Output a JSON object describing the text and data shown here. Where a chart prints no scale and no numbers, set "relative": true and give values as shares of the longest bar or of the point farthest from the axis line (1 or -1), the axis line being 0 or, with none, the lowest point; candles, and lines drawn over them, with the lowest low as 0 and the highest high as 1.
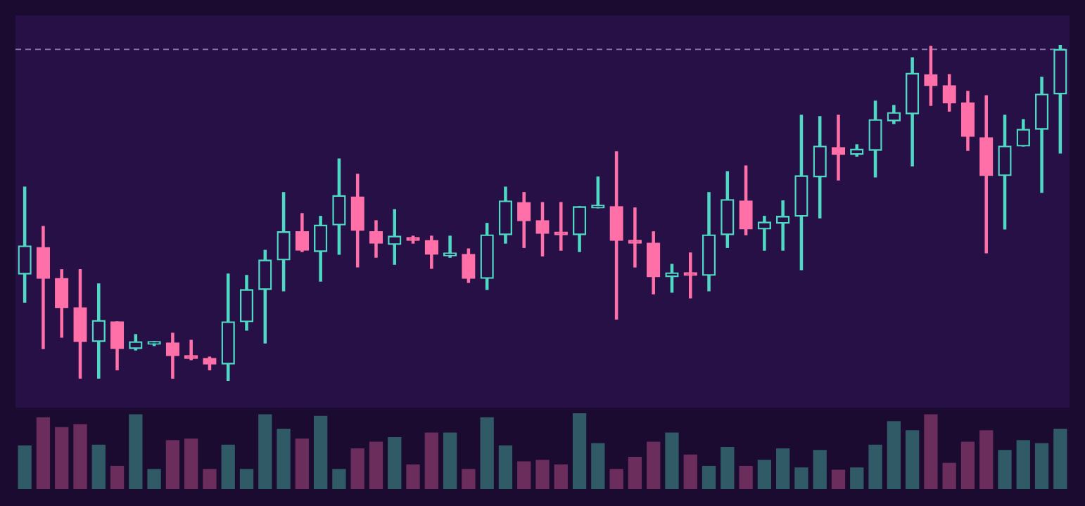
{
  "chart_data": [
    {
      "type": "candlestick",
      "relative": true,
      "tick_labels": false,
      "categories": [
        null,
        null,
        null,
        null,
        null,
        null,
        null,
        null,
        null,
        null,
        null,
        null,
        null,
        null,
        null,
        null,
        null,
        null,
        null,
        null,
        null,
        null,
        null,
        null,
        null,
        null,
        null,
        null,
        null,
        null,
        null,
        null,
        null,
        null,
        null,
        null,
        null,
        null,
        null,
        null,
        null,
        null,
        null,
        null,
        null,
        null,
        null,
        null,
        null,
        null,
        null,
        null,
        null,
        null,
        null,
        null,
        null
      ],
      "ohlc": [
        [
          0.318,
          0.577,
          0.234,
          0.402
        ],
        [
          0.397,
          0.46,
          0.096,
          0.305
        ],
        [
          0.305,
          0.331,
          0.13,
          0.218
        ],
        [
          0.218,
          0.331,
          0.008,
          0.117
        ],
        [
          0.117,
          0.289,
          0.008,
          0.18
        ],
        [
          0.176,
          0.176,
          0.033,
          0.096
        ],
        [
          0.096,
          0.138,
          0.092,
          0.117
        ],
        [
          0.109,
          0.117,
          0.105,
          0.117
        ],
        [
          0.113,
          0.142,
          0.008,
          0.075
        ],
        [
          0.071,
          0.121,
          0.063,
          0.067
        ],
        [
          0.067,
          0.071,
          0.033,
          0.05
        ],
        [
          0.05,
          0.318,
          0,
          0.176
        ],
        [
          0.176,
          0.314,
          0.151,
          0.272
        ],
        [
          0.272,
          0.389,
          0.113,
          0.36
        ],
        [
          0.36,
          0.561,
          0.268,
          0.444
        ],
        [
          0.444,
          0.498,
          0.385,
          0.389
        ],
        [
          0.385,
          0.49,
          0.297,
          0.464
        ],
        [
          0.464,
          0.661,
          0.377,
          0.552
        ],
        [
          0.548,
          0.615,
          0.339,
          0.448
        ],
        [
          0.444,
          0.477,
          0.368,
          0.41
        ],
        [
          0.406,
          0.51,
          0.347,
          0.431
        ],
        [
          0.427,
          0.431,
          0.41,
          0.418
        ],
        [
          0.418,
          0.431,
          0.335,
          0.377
        ],
        [
          0.372,
          0.431,
          0.368,
          0.381
        ],
        [
          0.377,
          0.393,
          0.293,
          0.305
        ],
        [
          0.305,
          0.469,
          0.272,
          0.435
        ],
        [
          0.435,
          0.577,
          0.41,
          0.536
        ],
        [
          0.531,
          0.561,
          0.397,
          0.477
        ],
        [
          0.477,
          0.531,
          0.372,
          0.439
        ],
        [
          0.439,
          0.531,
          0.389,
          0.435
        ],
        [
          0.435,
          0.519,
          0.385,
          0.519
        ],
        [
          0.515,
          0.607,
          0.515,
          0.519
        ],
        [
          0.519,
          0.682,
          0.184,
          0.418
        ],
        [
          0.414,
          0.515,
          0.339,
          0.41
        ],
        [
          0.41,
          0.444,
          0.259,
          0.31
        ],
        [
          0.31,
          0.347,
          0.264,
          0.322
        ],
        [
          0.322,
          0.381,
          0.247,
          0.314
        ],
        [
          0.314,
          0.561,
          0.268,
          0.435
        ],
        [
          0.435,
          0.623,
          0.397,
          0.54
        ],
        [
          0.536,
          0.64,
          0.435,
          0.452
        ],
        [
          0.452,
          0.49,
          0.389,
          0.473
        ],
        [
          0.469,
          0.536,
          0.389,
          0.49
        ],
        [
          0.49,
          0.791,
          0.331,
          0.611
        ],
        [
          0.607,
          0.787,
          0.485,
          0.699
        ],
        [
          0.695,
          0.791,
          0.598,
          0.674
        ],
        [
          0.674,
          0.703,
          0.669,
          0.69
        ],
        [
          0.686,
          0.833,
          0.607,
          0.778
        ],
        [
          0.774,
          0.82,
          0.766,
          0.799
        ],
        [
          0.795,
          0.962,
          0.64,
          0.916
        ],
        [
          0.912,
          0.996,
          0.82,
          0.879
        ],
        [
          0.879,
          0.912,
          0.803,
          0.828
        ],
        [
          0.828,
          0.862,
          0.686,
          0.728
        ],
        [
          0.724,
          0.849,
          0.381,
          0.611
        ],
        [
          0.611,
          0.791,
          0.452,
          0.699
        ],
        [
          0.699,
          0.778,
          0.699,
          0.749
        ],
        [
          0.749,
          0.904,
          0.561,
          0.854
        ],
        [
          0.854,
          1,
          0.678,
          0.987
        ]
      ],
      "ref_lines": [
        {
          "axis": "y",
          "value": 0.987,
          "color": "#7f74a8",
          "line_style": "dashed"
        }
      ]
    },
    {
      "type": "bar",
      "relative": true,
      "tick_labels": false,
      "categories": [
        null,
        null,
        null,
        null,
        null,
        null,
        null,
        null,
        null,
        null,
        null,
        null,
        null,
        null,
        null,
        null,
        null,
        null,
        null,
        null,
        null,
        null,
        null,
        null,
        null,
        null,
        null,
        null,
        null,
        null,
        null,
        null,
        null,
        null,
        null,
        null,
        null,
        null,
        null,
        null,
        null,
        null,
        null,
        null,
        null,
        null,
        null,
        null,
        null,
        null,
        null,
        null,
        null,
        null,
        null,
        null,
        null
      ],
      "values": [
        0.57,
        0.94,
        0.81,
        0.85,
        0.58,
        0.3,
        0.98,
        0.26,
        0.64,
        0.66,
        0.26,
        0.58,
        0.26,
        0.98,
        0.79,
        0.66,
        0.96,
        0.26,
        0.53,
        0.62,
        0.68,
        0.32,
        0.74,
        0.74,
        0.26,
        0.94,
        0.57,
        0.36,
        0.38,
        0.32,
        1,
        0.6,
        0.26,
        0.42,
        0.62,
        0.74,
        0.45,
        0.3,
        0.55,
        0.3,
        0.38,
        0.53,
        0.28,
        0.51,
        0.25,
        0.28,
        0.58,
        0.89,
        0.77,
        0.98,
        0.34,
        0.62,
        0.77,
        0.51,
        0.64,
        0.6,
        0.79
      ],
      "colors": [
        "#2f5a66",
        "#6a2d5c",
        "#6a2d5c",
        "#6a2d5c",
        "#2f5a66",
        "#6a2d5c",
        "#2f5a66",
        "#2f5a66",
        "#6a2d5c",
        "#6a2d5c",
        "#6a2d5c",
        "#2f5a66",
        "#2f5a66",
        "#2f5a66",
        "#2f5a66",
        "#6a2d5c",
        "#2f5a66",
        "#2f5a66",
        "#6a2d5c",
        "#6a2d5c",
        "#2f5a66",
        "#6a2d5c",
        "#6a2d5c",
        "#2f5a66",
        "#6a2d5c",
        "#2f5a66",
        "#2f5a66",
        "#6a2d5c",
        "#6a2d5c",
        "#6a2d5c",
        "#2f5a66",
        "#2f5a66",
        "#6a2d5c",
        "#6a2d5c",
        "#6a2d5c",
        "#2f5a66",
        "#6a2d5c",
        "#2f5a66",
        "#2f5a66",
        "#6a2d5c",
        "#2f5a66",
        "#2f5a66",
        "#2f5a66",
        "#2f5a66",
        "#6a2d5c",
        "#2f5a66",
        "#2f5a66",
        "#2f5a66",
        "#2f5a66",
        "#6a2d5c",
        "#6a2d5c",
        "#6a2d5c",
        "#6a2d5c",
        "#2f5a66",
        "#2f5a66",
        "#2f5a66",
        "#2f5a66"
      ]
    }
  ]
}
